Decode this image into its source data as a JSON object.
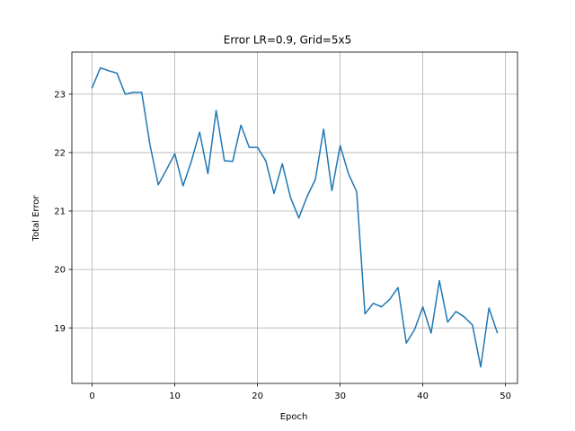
{
  "chart_data": {
    "type": "line",
    "title": "Error LR=0.9, Grid=5x5",
    "xlabel": "Epoch",
    "ylabel": "Total Error",
    "xlim": [
      -2.45,
      51.45
    ],
    "ylim": [
      18.05,
      23.72
    ],
    "xticks": [
      0,
      10,
      20,
      30,
      40,
      50
    ],
    "yticks": [
      19,
      20,
      21,
      22,
      23
    ],
    "grid": true,
    "series": [
      {
        "color": "#1f77b4",
        "x": [
          0,
          1,
          2,
          3,
          4,
          5,
          6,
          7,
          8,
          9,
          10,
          11,
          12,
          13,
          14,
          15,
          16,
          17,
          18,
          19,
          20,
          21,
          22,
          23,
          24,
          25,
          26,
          27,
          28,
          29,
          30,
          31,
          32,
          33,
          34,
          35,
          36,
          37,
          38,
          39,
          40,
          41,
          42,
          43,
          44,
          45,
          46,
          47,
          48,
          49
        ],
        "y": [
          23.11,
          23.45,
          23.4,
          23.36,
          23.0,
          23.03,
          23.03,
          22.13,
          21.45,
          21.71,
          21.98,
          21.43,
          21.85,
          22.35,
          21.64,
          22.72,
          21.86,
          21.85,
          22.47,
          22.09,
          22.09,
          21.86,
          21.3,
          21.81,
          21.23,
          20.88,
          21.25,
          21.54,
          22.4,
          21.35,
          22.12,
          21.64,
          21.33,
          19.24,
          19.42,
          19.36,
          19.49,
          19.69,
          18.74,
          18.97,
          19.36,
          18.91,
          19.81,
          19.1,
          19.28,
          19.19,
          19.05,
          18.33,
          19.34,
          18.92
        ]
      }
    ]
  }
}
